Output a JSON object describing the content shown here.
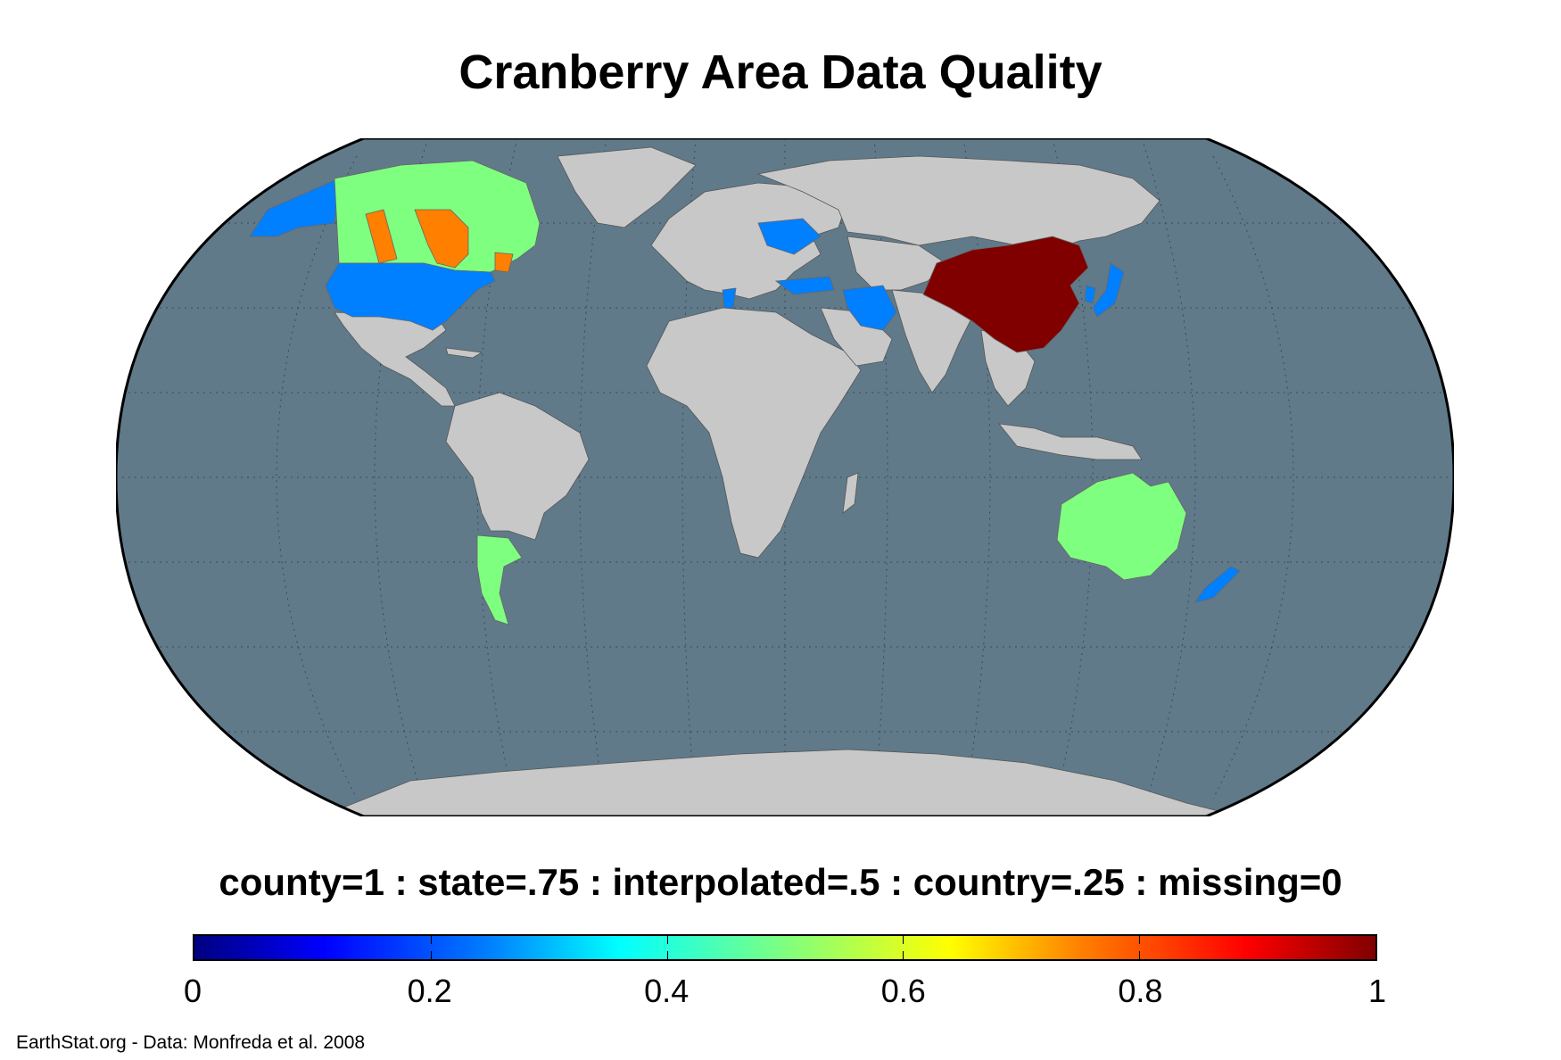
{
  "title": "Cranberry Area Data Quality",
  "legend": {
    "caption": "county=1 : state=.75 : interpolated=.5 : country=.25 : missing=0",
    "ticks": [
      "0",
      "0.2",
      "0.4",
      "0.6",
      "0.8",
      "1"
    ],
    "range": [
      0,
      1
    ],
    "colormap": "jet"
  },
  "credit": "EarthStat.org - Data: Monfreda et al. 2008",
  "colors": {
    "ocean": "#607a8a",
    "no_data_land": "#c8c8c8",
    "county": "#800000",
    "state": "#ff7f00",
    "interpolated": "#7fff7f",
    "country": "#0080ff"
  },
  "regions": [
    {
      "name": "United States",
      "quality": "country"
    },
    {
      "name": "Alaska",
      "quality": "country"
    },
    {
      "name": "Canada",
      "quality": "interpolated"
    },
    {
      "name": "Canada (provinces)",
      "quality": "state"
    },
    {
      "name": "China",
      "quality": "county"
    },
    {
      "name": "Australia",
      "quality": "interpolated"
    },
    {
      "name": "Argentina",
      "quality": "interpolated"
    },
    {
      "name": "Japan",
      "quality": "country"
    },
    {
      "name": "New Zealand",
      "quality": "country"
    },
    {
      "name": "Iran",
      "quality": "country"
    },
    {
      "name": "Turkey",
      "quality": "country"
    },
    {
      "name": "Ukraine",
      "quality": "country"
    }
  ]
}
